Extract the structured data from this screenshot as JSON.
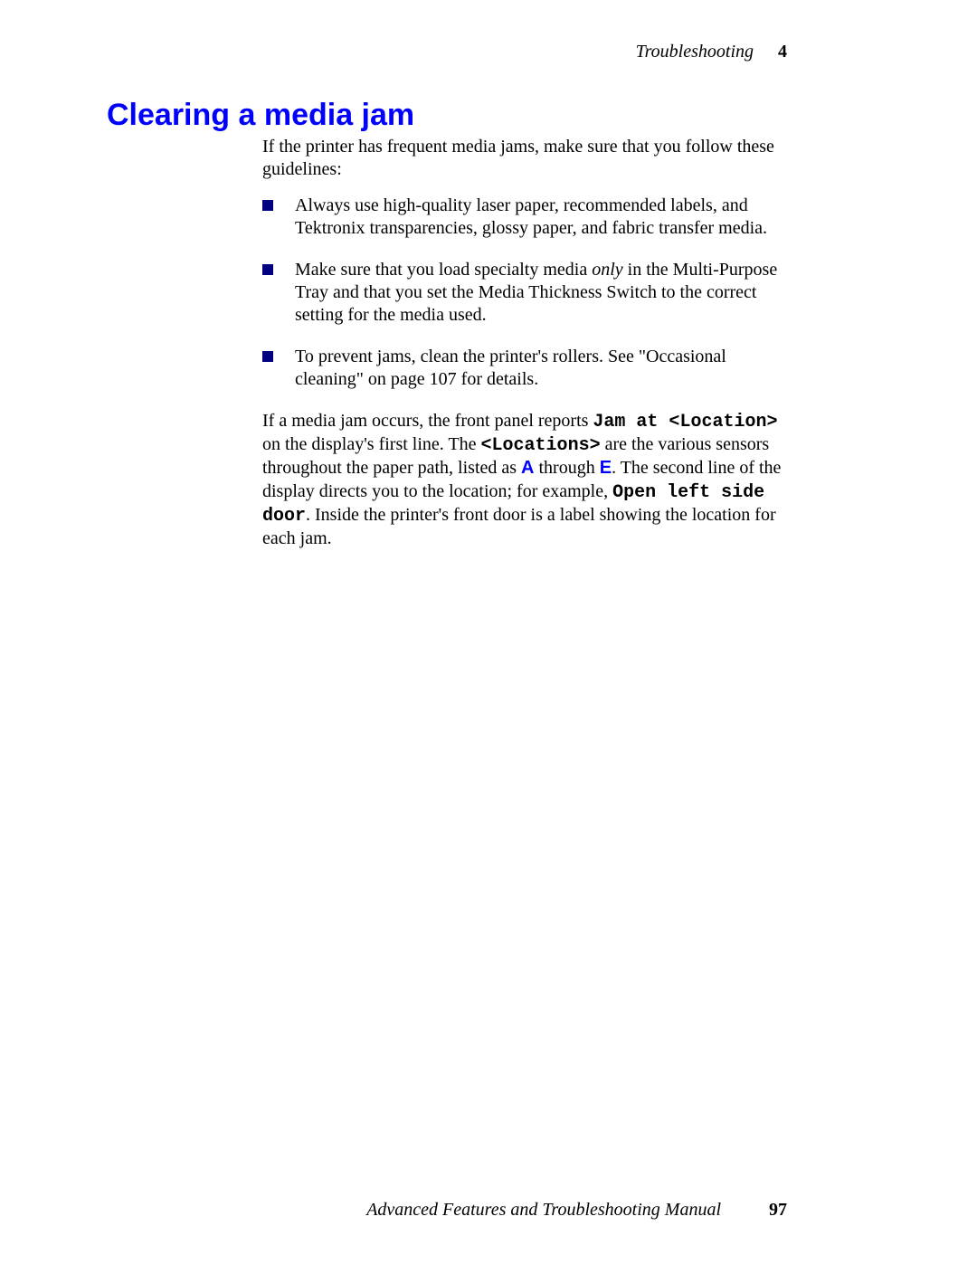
{
  "header": {
    "section": "Troubleshooting",
    "chapter_number": "4"
  },
  "title": "Clearing a media jam",
  "colors": {
    "heading": "#0000ff",
    "bullet": "#000080",
    "location_letter": "#0000ff",
    "text": "#000000",
    "background": "#ffffff"
  },
  "fonts": {
    "body_family": "Palatino Linotype, Book Antiqua, Palatino, Georgia, serif",
    "heading_family": "Arial, Helvetica, sans-serif",
    "mono_family": "Courier New, Courier, monospace",
    "body_size_pt": 15,
    "heading_size_pt": 26
  },
  "intro": "If the printer has frequent media jams, make sure that you follow these guidelines:",
  "bullets": [
    {
      "pre": "Always use high-quality laser paper, recommended labels, and Tektronix transparencies, glossy paper, and fabric transfer media."
    },
    {
      "pre": "Make sure that you load specialty media ",
      "em": "only",
      "post": " in the Multi-Purpose Tray and that you set the Media Thickness Switch to the correct setting for the media used."
    },
    {
      "pre": "To prevent jams, clean the printer's rollers.  See \"Occasional cleaning\" on page 107 for details."
    }
  ],
  "para2": {
    "t1": "If a media jam occurs, the front panel reports ",
    "mono1": "Jam at <Location>",
    "t2": " on the display's first line.   The ",
    "mono2": "<Locations>",
    "t3": " are the various sensors throughout the paper path, listed as ",
    "locA": "A",
    "t4": " through ",
    "locE": "E",
    "t5": ".  The second line of the display directs you to the location; for example, ",
    "mono3": "Open left side door",
    "t6": ". Inside the printer's front door is a label showing the location for each jam."
  },
  "footer": {
    "manual": "Advanced Features and Troubleshooting Manual",
    "page": "97"
  }
}
